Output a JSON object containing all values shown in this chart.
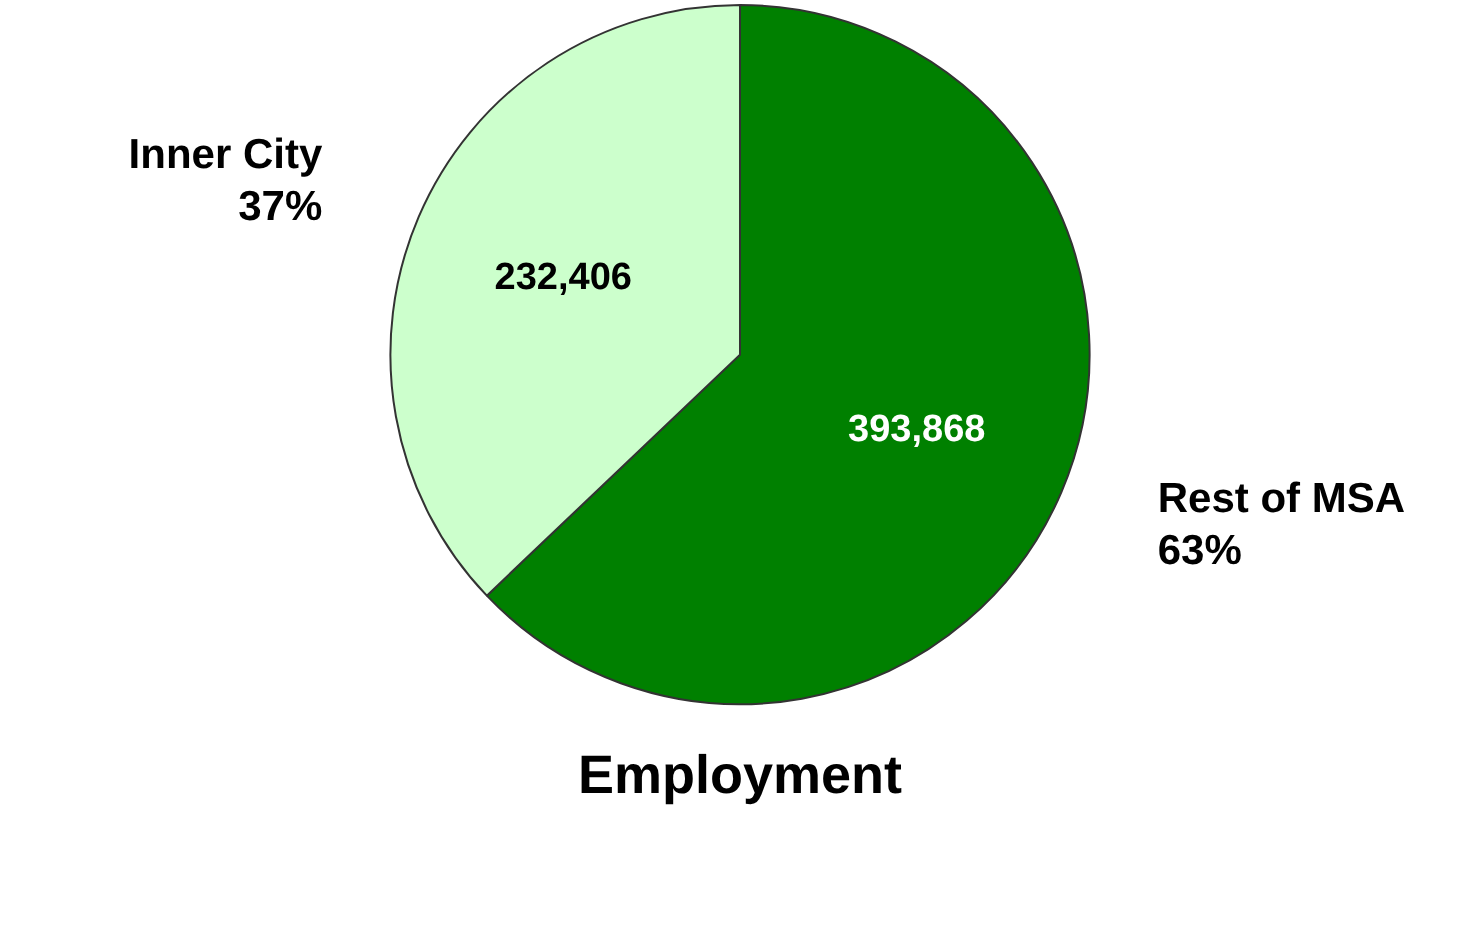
{
  "chart_data": {
    "type": "pie",
    "title": "Employment",
    "categories": [
      "Rest of MSA",
      "Inner City"
    ],
    "values": [
      393868,
      232406
    ],
    "colors": [
      "#008000",
      "#ccffcc"
    ],
    "annotations": [
      "63%",
      "37%"
    ],
    "value_labels": [
      "393,868",
      "232,406"
    ],
    "legend": false
  }
}
